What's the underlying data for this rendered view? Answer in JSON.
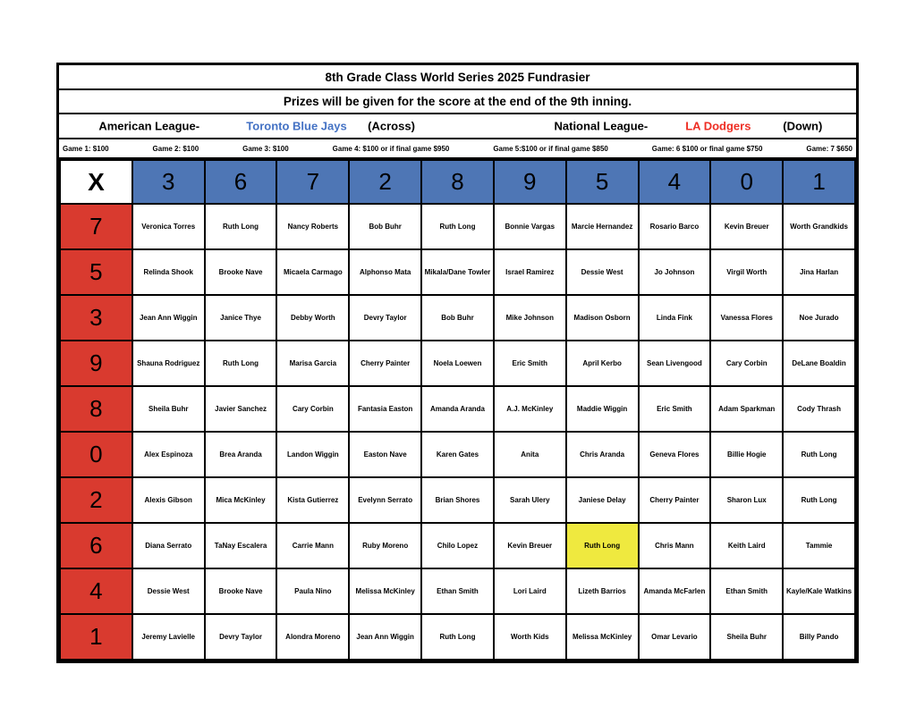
{
  "title": "8th Grade Class World Series 2025 Fundrasier",
  "subtitle": "Prizes will be given for the score at the end of the 9th inning.",
  "leagues": {
    "american_label": "American League-",
    "american_team": "Toronto Blue Jays",
    "american_direction": "(Across)",
    "national_label": "National League-",
    "national_team": "LA Dodgers",
    "national_direction": "(Down)"
  },
  "games": [
    "Game 1: $100",
    "Game 2: $100",
    "Game 3: $100",
    "Game 4: $100 or if final game $950",
    "Game 5:$100 or if final game $850",
    "Game: 6 $100 or final game $750",
    "Game: 7 $650"
  ],
  "grid": {
    "corner": "X",
    "across_numbers": [
      "3",
      "6",
      "7",
      "2",
      "8",
      "9",
      "5",
      "4",
      "0",
      "1"
    ],
    "down_numbers": [
      "7",
      "5",
      "3",
      "9",
      "8",
      "0",
      "2",
      "6",
      "4",
      "1"
    ],
    "rows": [
      [
        "Veronica Torres",
        "Ruth Long",
        "Nancy Roberts",
        "Bob Buhr",
        "Ruth Long",
        "Bonnie Vargas",
        "Marcie Hernandez",
        "Rosario Barco",
        "Kevin Breuer",
        "Worth Grandkids"
      ],
      [
        "Relinda Shook",
        "Brooke Nave",
        "Micaela Carmago",
        "Alphonso Mata",
        "Mikala/Dane Towler",
        "Israel Ramirez",
        "Dessie West",
        "Jo Johnson",
        "Virgil Worth",
        "Jina Harlan"
      ],
      [
        "Jean Ann Wiggin",
        "Janice Thye",
        "Debby Worth",
        "Devry Taylor",
        "Bob Buhr",
        "Mike Johnson",
        "Madison Osborn",
        "Linda Fink",
        "Vanessa Flores",
        "Noe Jurado"
      ],
      [
        "Shauna Rodriguez",
        "Ruth Long",
        "Marisa Garcia",
        "Cherry Painter",
        "Noela Loewen",
        "Eric Smith",
        "April Kerbo",
        "Sean Livengood",
        "Cary Corbin",
        "DeLane Boaldin"
      ],
      [
        "Sheila Buhr",
        "Javier Sanchez",
        "Cary Corbin",
        "Fantasia Easton",
        "Amanda Aranda",
        "A.J. McKinley",
        "Maddie Wiggin",
        "Eric Smith",
        "Adam Sparkman",
        "Cody Thrash"
      ],
      [
        "Alex Espinoza",
        "Brea Aranda",
        "Landon Wiggin",
        "Easton Nave",
        "Karen Gates",
        "Anita",
        "Chris Aranda",
        "Geneva Flores",
        "Billie Hogie",
        "Ruth Long"
      ],
      [
        "Alexis Gibson",
        "Mica McKinley",
        "Kista Gutierrez",
        "Evelynn Serrato",
        "Brian Shores",
        "Sarah Ulery",
        "Janiese Delay",
        "Cherry Painter",
        "Sharon Lux",
        "Ruth Long"
      ],
      [
        "Diana Serrato",
        "TaNay Escalera",
        "Carrie Mann",
        "Ruby Moreno",
        "Chilo Lopez",
        "Kevin Breuer",
        "Ruth Long",
        "Chris Mann",
        "Keith Laird",
        "Tammie"
      ],
      [
        "Dessie West",
        "Brooke Nave",
        "Paula Nino",
        "Melissa McKinley",
        "Ethan Smith",
        "Lori Laird",
        "Lizeth Barrios",
        "Amanda McFarlen",
        "Ethan Smith",
        "Kayle/Kale Watkins"
      ],
      [
        "Jeremy Lavielle",
        "Devry Taylor",
        "Alondra Moreno",
        "Jean Ann Wiggin",
        "Ruth Long",
        "Worth Kids",
        "Melissa McKinley",
        "Omar Levario",
        "Sheila Buhr",
        "Billy Pando"
      ]
    ],
    "highlighted_cell": {
      "row_number": "6",
      "column_number": "5",
      "name": "Ruth Long",
      "row_index": 7,
      "col_index": 6
    }
  },
  "colors": {
    "header_blue": "#4E76B5",
    "row_red": "#D93A2F",
    "highlight_yellow": "#EFE93F",
    "team_blue": "#4472C4",
    "team_red": "#EE2E24"
  }
}
